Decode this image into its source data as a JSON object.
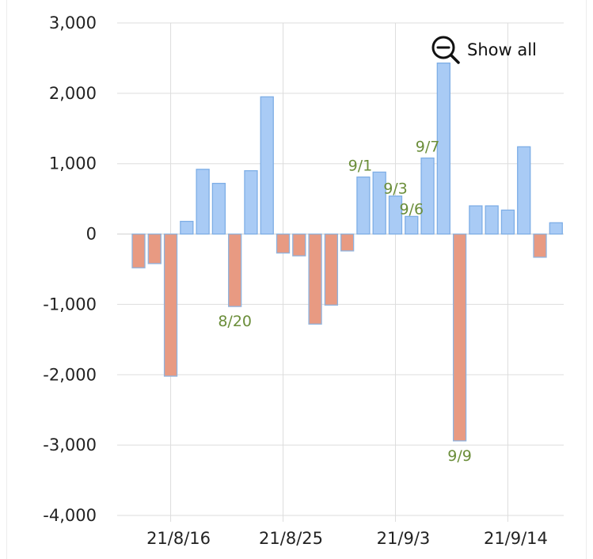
{
  "toolbar": {
    "show_all_label": "Show all",
    "show_all_icon": "zoom-out-icon"
  },
  "colors": {
    "positive_fill": "#a9cbf5",
    "positive_stroke": "#7eaee6",
    "negative_fill": "#e89a82",
    "negative_stroke": "#8fb3de",
    "annotation": "#6b8e3a",
    "grid": "#dddddd",
    "axis_text": "#222222"
  },
  "chart_data": {
    "type": "bar",
    "ylim": [
      -4000,
      3000
    ],
    "yticks": [
      3000,
      2000,
      1000,
      0,
      -1000,
      -2000,
      -3000,
      -4000
    ],
    "ytick_labels": [
      "3,000",
      "2,000",
      "1,000",
      "0",
      "-1,000",
      "-2,000",
      "-3,000",
      "-4,000"
    ],
    "xticks": [
      {
        "index": 2,
        "label": "21/8/16"
      },
      {
        "index": 9,
        "label": "21/8/25"
      },
      {
        "index": 16,
        "label": "21/9/3"
      },
      {
        "index": 23,
        "label": "21/9/14"
      }
    ],
    "grid": true,
    "values": [
      -480,
      -420,
      -2020,
      180,
      920,
      720,
      -1030,
      900,
      1950,
      -270,
      -310,
      -1280,
      -1010,
      -240,
      810,
      880,
      540,
      250,
      1080,
      2430,
      -2940,
      400,
      400,
      340,
      1240,
      -330,
      160
    ],
    "annotations": [
      {
        "index": 6,
        "label": "8/20"
      },
      {
        "index": 14,
        "label": "9/1"
      },
      {
        "index": 16,
        "label": "9/3"
      },
      {
        "index": 17,
        "label": "9/6"
      },
      {
        "index": 18,
        "label": "9/7"
      },
      {
        "index": 20,
        "label": "9/9"
      }
    ]
  }
}
